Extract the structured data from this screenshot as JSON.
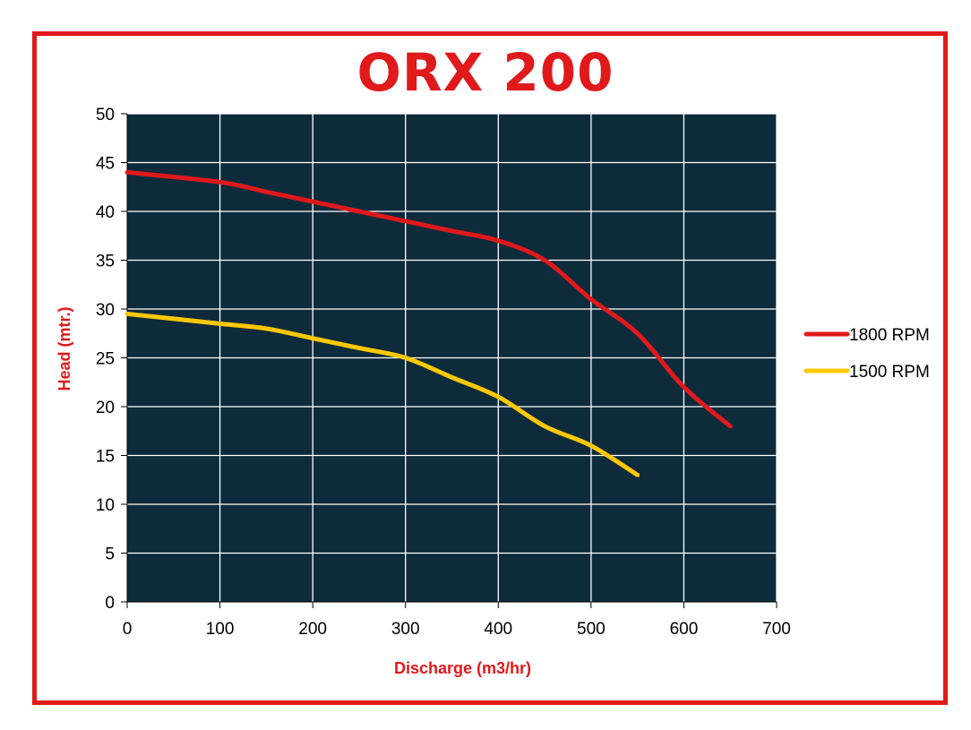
{
  "chart_data": {
    "type": "line",
    "title": "ORX 200",
    "xlabel": "Discharge (m3/hr)",
    "ylabel": "Head (mtr.)",
    "xlim": [
      0,
      700
    ],
    "ylim": [
      0,
      50
    ],
    "xticks": [
      0,
      100,
      200,
      300,
      400,
      500,
      600,
      700
    ],
    "yticks": [
      0,
      5,
      10,
      15,
      20,
      25,
      30,
      35,
      40,
      45,
      50
    ],
    "grid": true,
    "legend_position": "right",
    "plot_background": "#0e2b3c",
    "series": [
      {
        "name": "1800 RPM",
        "color": "#e0191b",
        "points": [
          [
            0,
            44
          ],
          [
            100,
            43
          ],
          [
            150,
            42
          ],
          [
            200,
            41
          ],
          [
            250,
            40
          ],
          [
            300,
            39
          ],
          [
            350,
            38
          ],
          [
            400,
            37
          ],
          [
            450,
            35
          ],
          [
            500,
            31
          ],
          [
            550,
            27.5
          ],
          [
            600,
            22
          ],
          [
            650,
            18
          ]
        ]
      },
      {
        "name": "1500 RPM",
        "color": "#ffc800",
        "points": [
          [
            0,
            29.5
          ],
          [
            100,
            28.5
          ],
          [
            150,
            28
          ],
          [
            200,
            27
          ],
          [
            250,
            26
          ],
          [
            300,
            25
          ],
          [
            350,
            23
          ],
          [
            400,
            21
          ],
          [
            450,
            18
          ],
          [
            500,
            16
          ],
          [
            550,
            13
          ]
        ]
      }
    ]
  }
}
